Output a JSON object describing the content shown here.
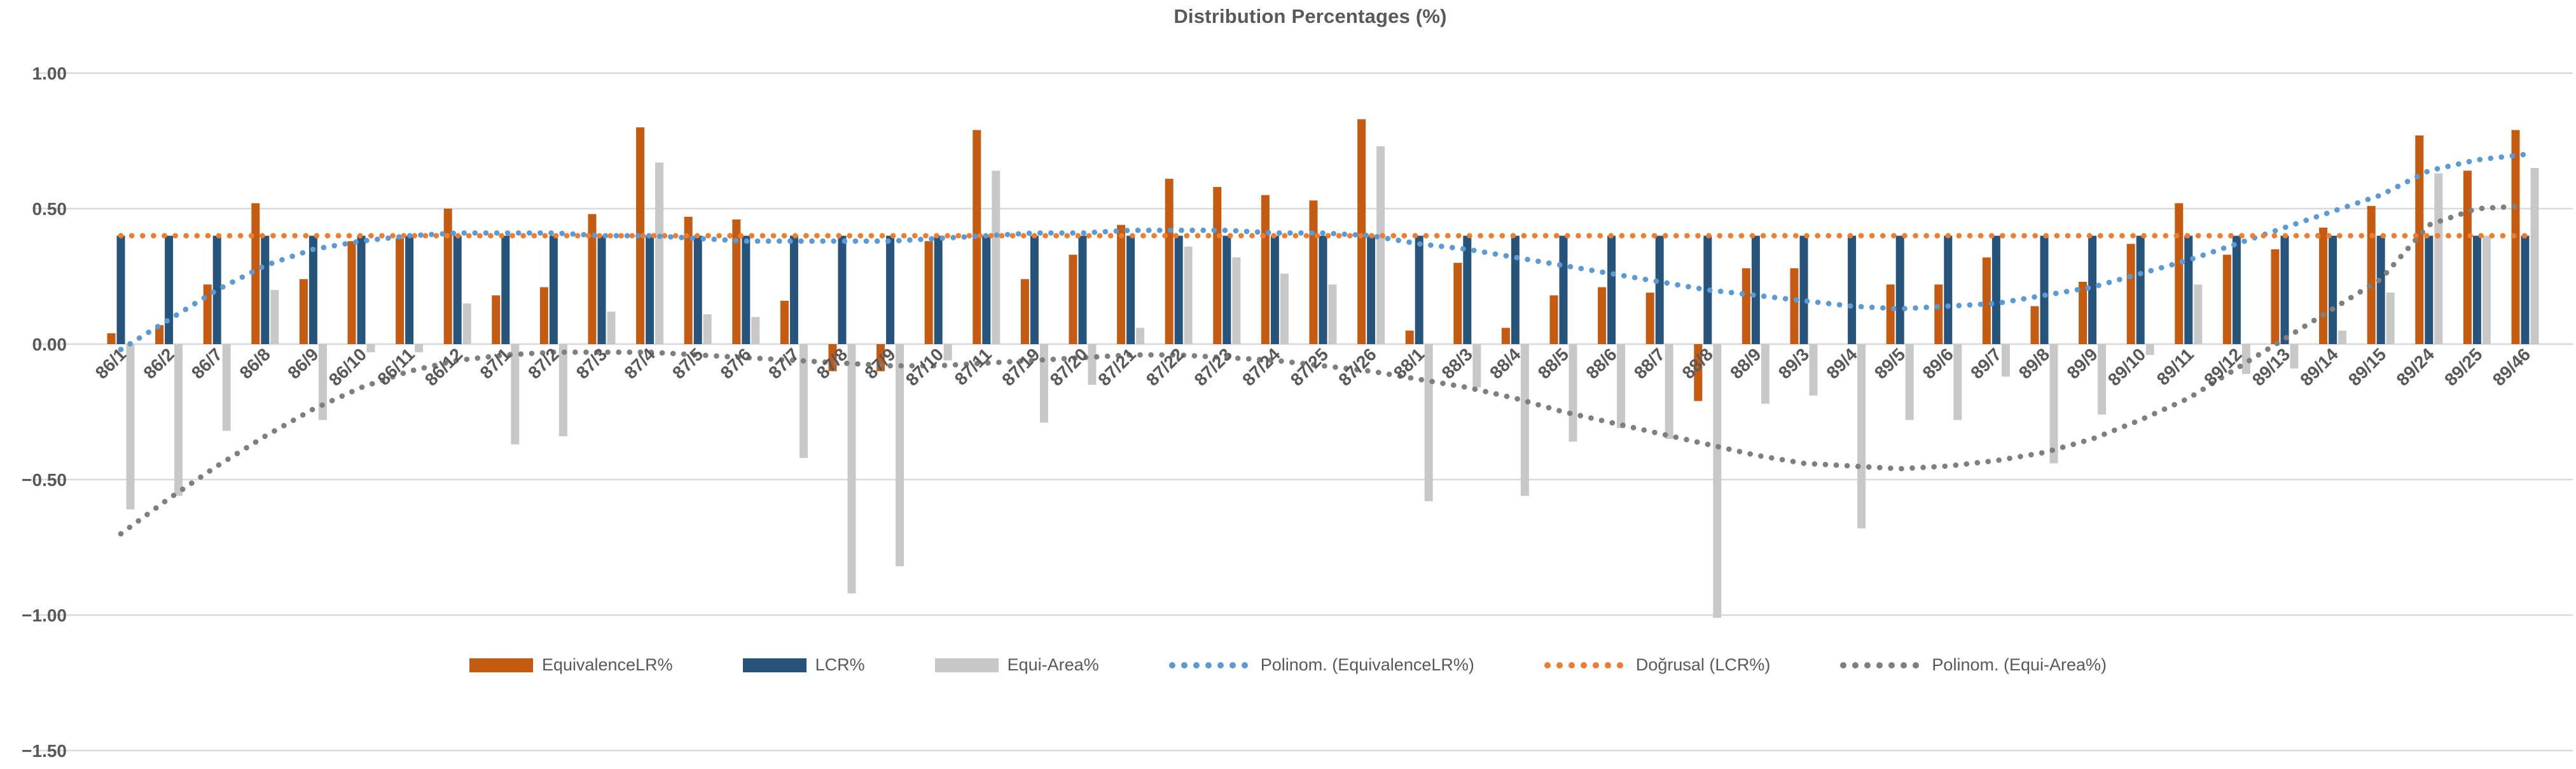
{
  "title": "Distribution Percentages (%)",
  "chart_data": {
    "type": "bar",
    "title": "Distribution Percentages (%)",
    "ylabel": "",
    "xlabel": "",
    "ylim": [
      -1.5,
      1.0
    ],
    "y_ticks": [
      1.0,
      0.5,
      0.0,
      -0.5,
      -1.0,
      -1.5
    ],
    "grid": true,
    "legend_position": "bottom",
    "axis_text_color": "#595959",
    "gridline_color": "#D9D9D9",
    "categories": [
      "86/1",
      "86/2",
      "86/7",
      "86/8",
      "86/9",
      "86/10",
      "86/11",
      "86/12",
      "87/1",
      "87/2",
      "87/3",
      "87/4",
      "87/5",
      "87/6",
      "87/7",
      "87/8",
      "87/9",
      "87/10",
      "87/11",
      "87/19",
      "87/20",
      "87/21",
      "87/22",
      "87/23",
      "87/24",
      "87/25",
      "87/26",
      "88/1",
      "88/3",
      "88/4",
      "88/5",
      "88/6",
      "88/7",
      "88/8",
      "88/9",
      "89/3",
      "89/4",
      "89/5",
      "89/6",
      "89/7",
      "89/8",
      "89/9",
      "89/10",
      "89/11",
      "89/12",
      "89/13",
      "89/14",
      "89/15",
      "89/24",
      "89/25",
      "89/46"
    ],
    "series": [
      {
        "name": "EquivalenceLR%",
        "type": "bar",
        "color": "#C55A11",
        "values": [
          0.04,
          0.07,
          0.22,
          0.52,
          0.24,
          0.38,
          0.39,
          0.5,
          0.18,
          0.21,
          0.48,
          0.8,
          0.47,
          0.46,
          0.16,
          -0.1,
          -0.1,
          0.38,
          0.79,
          0.24,
          0.33,
          0.44,
          0.61,
          0.58,
          0.55,
          0.53,
          0.83,
          0.05,
          0.3,
          0.06,
          0.18,
          0.21,
          0.19,
          -0.21,
          0.28,
          0.28,
          0.0,
          0.22,
          0.22,
          0.32,
          0.14,
          0.23,
          0.37,
          0.52,
          0.33,
          0.35,
          0.43,
          0.51,
          0.77,
          0.64,
          0.79
        ]
      },
      {
        "name": "LCR%",
        "type": "bar",
        "color": "#27547B",
        "values": [
          0.4,
          0.4,
          0.4,
          0.4,
          0.4,
          0.4,
          0.4,
          0.4,
          0.4,
          0.4,
          0.4,
          0.4,
          0.4,
          0.4,
          0.4,
          0.4,
          0.4,
          0.4,
          0.4,
          0.4,
          0.4,
          0.4,
          0.4,
          0.4,
          0.4,
          0.4,
          0.4,
          0.4,
          0.4,
          0.4,
          0.4,
          0.4,
          0.4,
          0.4,
          0.4,
          0.4,
          0.4,
          0.4,
          0.4,
          0.4,
          0.4,
          0.4,
          0.4,
          0.4,
          0.4,
          0.4,
          0.4,
          0.4,
          0.4,
          0.4,
          0.4
        ]
      },
      {
        "name": "Equi-Area%",
        "type": "bar",
        "color": "#C8C8C8",
        "values": [
          -0.61,
          -0.56,
          -0.32,
          0.2,
          -0.28,
          -0.03,
          -0.03,
          0.15,
          -0.37,
          -0.34,
          0.12,
          0.67,
          0.11,
          0.1,
          -0.42,
          -0.92,
          -0.82,
          -0.06,
          0.64,
          -0.29,
          -0.15,
          0.06,
          0.36,
          0.32,
          0.26,
          0.22,
          0.73,
          -0.58,
          -0.16,
          -0.56,
          -0.36,
          -0.31,
          -0.35,
          -1.01,
          -0.22,
          -0.19,
          -0.68,
          -0.28,
          -0.28,
          -0.12,
          -0.44,
          -0.26,
          -0.04,
          0.22,
          -0.11,
          -0.09,
          0.05,
          0.19,
          0.63,
          0.4,
          0.65
        ]
      },
      {
        "name": "Polinom. (EquivalenceLR%)",
        "type": "dotted-line",
        "color": "#5B9BD5",
        "values": [
          -0.02,
          0.09,
          0.2,
          0.29,
          0.35,
          0.38,
          0.4,
          0.41,
          0.41,
          0.41,
          0.4,
          0.4,
          0.39,
          0.38,
          0.38,
          0.38,
          0.38,
          0.39,
          0.4,
          0.41,
          0.41,
          0.42,
          0.42,
          0.42,
          0.41,
          0.41,
          0.4,
          0.37,
          0.35,
          0.32,
          0.29,
          0.26,
          0.23,
          0.2,
          0.18,
          0.16,
          0.14,
          0.13,
          0.14,
          0.15,
          0.18,
          0.21,
          0.26,
          0.31,
          0.37,
          0.43,
          0.49,
          0.55,
          0.64,
          0.68,
          0.7
        ]
      },
      {
        "name": "Doğrusal (LCR%)",
        "type": "dotted-line",
        "color": "#ED7D31",
        "values": [
          0.4,
          0.4,
          0.4,
          0.4,
          0.4,
          0.4,
          0.4,
          0.4,
          0.4,
          0.4,
          0.4,
          0.4,
          0.4,
          0.4,
          0.4,
          0.4,
          0.4,
          0.4,
          0.4,
          0.4,
          0.4,
          0.4,
          0.4,
          0.4,
          0.4,
          0.4,
          0.4,
          0.4,
          0.4,
          0.4,
          0.4,
          0.4,
          0.4,
          0.4,
          0.4,
          0.4,
          0.4,
          0.4,
          0.4,
          0.4,
          0.4,
          0.4,
          0.4,
          0.4,
          0.4,
          0.4,
          0.4,
          0.4,
          0.4,
          0.4,
          0.4
        ]
      },
      {
        "name": "Polinom. (Equi-Area%)",
        "type": "dotted-line",
        "color": "#7F7F7F",
        "values": [
          -0.7,
          -0.57,
          -0.45,
          -0.34,
          -0.24,
          -0.16,
          -0.1,
          -0.06,
          -0.04,
          -0.03,
          -0.03,
          -0.03,
          -0.04,
          -0.05,
          -0.06,
          -0.07,
          -0.08,
          -0.08,
          -0.07,
          -0.06,
          -0.05,
          -0.04,
          -0.04,
          -0.05,
          -0.06,
          -0.08,
          -0.1,
          -0.13,
          -0.16,
          -0.2,
          -0.25,
          -0.29,
          -0.33,
          -0.37,
          -0.41,
          -0.44,
          -0.45,
          -0.46,
          -0.45,
          -0.43,
          -0.4,
          -0.35,
          -0.28,
          -0.2,
          -0.09,
          0.02,
          0.13,
          0.24,
          0.44,
          0.5,
          0.51
        ]
      }
    ]
  }
}
